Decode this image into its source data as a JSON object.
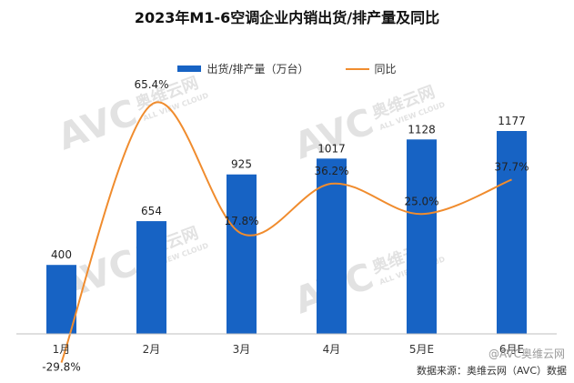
{
  "chart_data": {
    "type": "bar",
    "title": "2023年M1-6空调企业内销出货/排产量及同比",
    "categories": [
      "1月",
      "2月",
      "3月",
      "4月",
      "5月E",
      "6月E"
    ],
    "series": [
      {
        "name": "出货/排产量（万台）",
        "type": "bar",
        "values": [
          400,
          654,
          925,
          1017,
          1128,
          1177
        ],
        "labels": [
          "400",
          "654",
          "925",
          "1017",
          "1128",
          "1177"
        ]
      },
      {
        "name": "同比",
        "type": "line",
        "values": [
          -29.8,
          65.4,
          17.8,
          36.2,
          25.0,
          37.7
        ],
        "labels": [
          "-29.8%",
          "65.4%",
          "17.8%",
          "36.2%",
          "25.0%",
          "37.7%"
        ]
      }
    ],
    "legend": "top-center",
    "grid": false,
    "colors": {
      "bar": "#1763c4",
      "line": "#f08c2e"
    }
  },
  "watermark": {
    "brand": "AVC",
    "cn": "奥维云网",
    "en": "ALL VIEW CLOUD"
  },
  "credit": "@AVC奥维云网",
  "source": "数据来源：奥维云网（AVC）数据"
}
